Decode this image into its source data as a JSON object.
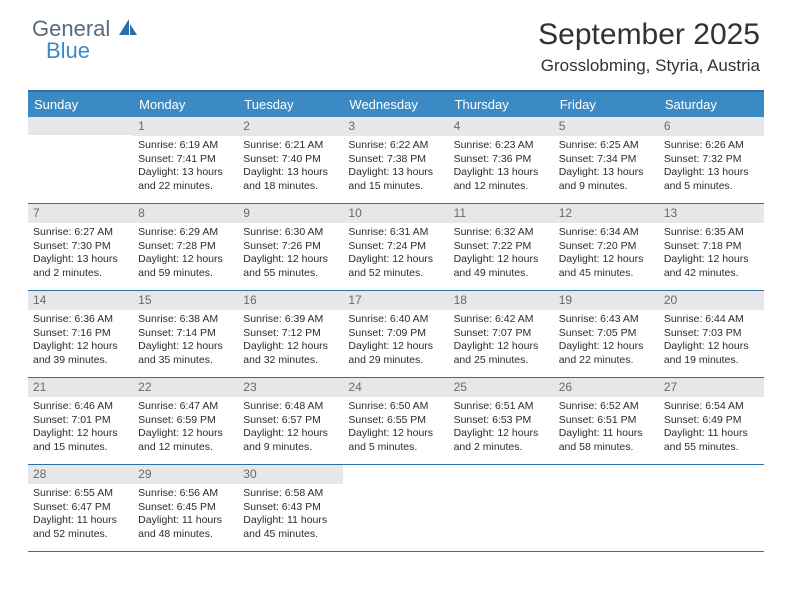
{
  "brand": {
    "line1": "General",
    "line2": "Blue",
    "line1_color": "#5a6a78",
    "line2_color": "#3b8ac4",
    "icon_color": "#2e6ca8"
  },
  "title": "September 2025",
  "location": "Grosslobming, Styria, Austria",
  "header_bg": "#3b8ac4",
  "rule_color": "#2f6fa8",
  "daynum_bg": "#e7e7e9",
  "background_color": "#ffffff",
  "title_fontsize": 30,
  "location_fontsize": 17,
  "cell_fontsize": 10.5,
  "day_labels": [
    "Sunday",
    "Monday",
    "Tuesday",
    "Wednesday",
    "Thursday",
    "Friday",
    "Saturday"
  ],
  "weeks": [
    [
      null,
      {
        "n": "1",
        "sr": "Sunrise: 6:19 AM",
        "ss": "Sunset: 7:41 PM",
        "dl1": "Daylight: 13 hours",
        "dl2": "and 22 minutes."
      },
      {
        "n": "2",
        "sr": "Sunrise: 6:21 AM",
        "ss": "Sunset: 7:40 PM",
        "dl1": "Daylight: 13 hours",
        "dl2": "and 18 minutes."
      },
      {
        "n": "3",
        "sr": "Sunrise: 6:22 AM",
        "ss": "Sunset: 7:38 PM",
        "dl1": "Daylight: 13 hours",
        "dl2": "and 15 minutes."
      },
      {
        "n": "4",
        "sr": "Sunrise: 6:23 AM",
        "ss": "Sunset: 7:36 PM",
        "dl1": "Daylight: 13 hours",
        "dl2": "and 12 minutes."
      },
      {
        "n": "5",
        "sr": "Sunrise: 6:25 AM",
        "ss": "Sunset: 7:34 PM",
        "dl1": "Daylight: 13 hours",
        "dl2": "and 9 minutes."
      },
      {
        "n": "6",
        "sr": "Sunrise: 6:26 AM",
        "ss": "Sunset: 7:32 PM",
        "dl1": "Daylight: 13 hours",
        "dl2": "and 5 minutes."
      }
    ],
    [
      {
        "n": "7",
        "sr": "Sunrise: 6:27 AM",
        "ss": "Sunset: 7:30 PM",
        "dl1": "Daylight: 13 hours",
        "dl2": "and 2 minutes."
      },
      {
        "n": "8",
        "sr": "Sunrise: 6:29 AM",
        "ss": "Sunset: 7:28 PM",
        "dl1": "Daylight: 12 hours",
        "dl2": "and 59 minutes."
      },
      {
        "n": "9",
        "sr": "Sunrise: 6:30 AM",
        "ss": "Sunset: 7:26 PM",
        "dl1": "Daylight: 12 hours",
        "dl2": "and 55 minutes."
      },
      {
        "n": "10",
        "sr": "Sunrise: 6:31 AM",
        "ss": "Sunset: 7:24 PM",
        "dl1": "Daylight: 12 hours",
        "dl2": "and 52 minutes."
      },
      {
        "n": "11",
        "sr": "Sunrise: 6:32 AM",
        "ss": "Sunset: 7:22 PM",
        "dl1": "Daylight: 12 hours",
        "dl2": "and 49 minutes."
      },
      {
        "n": "12",
        "sr": "Sunrise: 6:34 AM",
        "ss": "Sunset: 7:20 PM",
        "dl1": "Daylight: 12 hours",
        "dl2": "and 45 minutes."
      },
      {
        "n": "13",
        "sr": "Sunrise: 6:35 AM",
        "ss": "Sunset: 7:18 PM",
        "dl1": "Daylight: 12 hours",
        "dl2": "and 42 minutes."
      }
    ],
    [
      {
        "n": "14",
        "sr": "Sunrise: 6:36 AM",
        "ss": "Sunset: 7:16 PM",
        "dl1": "Daylight: 12 hours",
        "dl2": "and 39 minutes."
      },
      {
        "n": "15",
        "sr": "Sunrise: 6:38 AM",
        "ss": "Sunset: 7:14 PM",
        "dl1": "Daylight: 12 hours",
        "dl2": "and 35 minutes."
      },
      {
        "n": "16",
        "sr": "Sunrise: 6:39 AM",
        "ss": "Sunset: 7:12 PM",
        "dl1": "Daylight: 12 hours",
        "dl2": "and 32 minutes."
      },
      {
        "n": "17",
        "sr": "Sunrise: 6:40 AM",
        "ss": "Sunset: 7:09 PM",
        "dl1": "Daylight: 12 hours",
        "dl2": "and 29 minutes."
      },
      {
        "n": "18",
        "sr": "Sunrise: 6:42 AM",
        "ss": "Sunset: 7:07 PM",
        "dl1": "Daylight: 12 hours",
        "dl2": "and 25 minutes."
      },
      {
        "n": "19",
        "sr": "Sunrise: 6:43 AM",
        "ss": "Sunset: 7:05 PM",
        "dl1": "Daylight: 12 hours",
        "dl2": "and 22 minutes."
      },
      {
        "n": "20",
        "sr": "Sunrise: 6:44 AM",
        "ss": "Sunset: 7:03 PM",
        "dl1": "Daylight: 12 hours",
        "dl2": "and 19 minutes."
      }
    ],
    [
      {
        "n": "21",
        "sr": "Sunrise: 6:46 AM",
        "ss": "Sunset: 7:01 PM",
        "dl1": "Daylight: 12 hours",
        "dl2": "and 15 minutes."
      },
      {
        "n": "22",
        "sr": "Sunrise: 6:47 AM",
        "ss": "Sunset: 6:59 PM",
        "dl1": "Daylight: 12 hours",
        "dl2": "and 12 minutes."
      },
      {
        "n": "23",
        "sr": "Sunrise: 6:48 AM",
        "ss": "Sunset: 6:57 PM",
        "dl1": "Daylight: 12 hours",
        "dl2": "and 9 minutes."
      },
      {
        "n": "24",
        "sr": "Sunrise: 6:50 AM",
        "ss": "Sunset: 6:55 PM",
        "dl1": "Daylight: 12 hours",
        "dl2": "and 5 minutes."
      },
      {
        "n": "25",
        "sr": "Sunrise: 6:51 AM",
        "ss": "Sunset: 6:53 PM",
        "dl1": "Daylight: 12 hours",
        "dl2": "and 2 minutes."
      },
      {
        "n": "26",
        "sr": "Sunrise: 6:52 AM",
        "ss": "Sunset: 6:51 PM",
        "dl1": "Daylight: 11 hours",
        "dl2": "and 58 minutes."
      },
      {
        "n": "27",
        "sr": "Sunrise: 6:54 AM",
        "ss": "Sunset: 6:49 PM",
        "dl1": "Daylight: 11 hours",
        "dl2": "and 55 minutes."
      }
    ],
    [
      {
        "n": "28",
        "sr": "Sunrise: 6:55 AM",
        "ss": "Sunset: 6:47 PM",
        "dl1": "Daylight: 11 hours",
        "dl2": "and 52 minutes."
      },
      {
        "n": "29",
        "sr": "Sunrise: 6:56 AM",
        "ss": "Sunset: 6:45 PM",
        "dl1": "Daylight: 11 hours",
        "dl2": "and 48 minutes."
      },
      {
        "n": "30",
        "sr": "Sunrise: 6:58 AM",
        "ss": "Sunset: 6:43 PM",
        "dl1": "Daylight: 11 hours",
        "dl2": "and 45 minutes."
      },
      null,
      null,
      null,
      null
    ]
  ]
}
